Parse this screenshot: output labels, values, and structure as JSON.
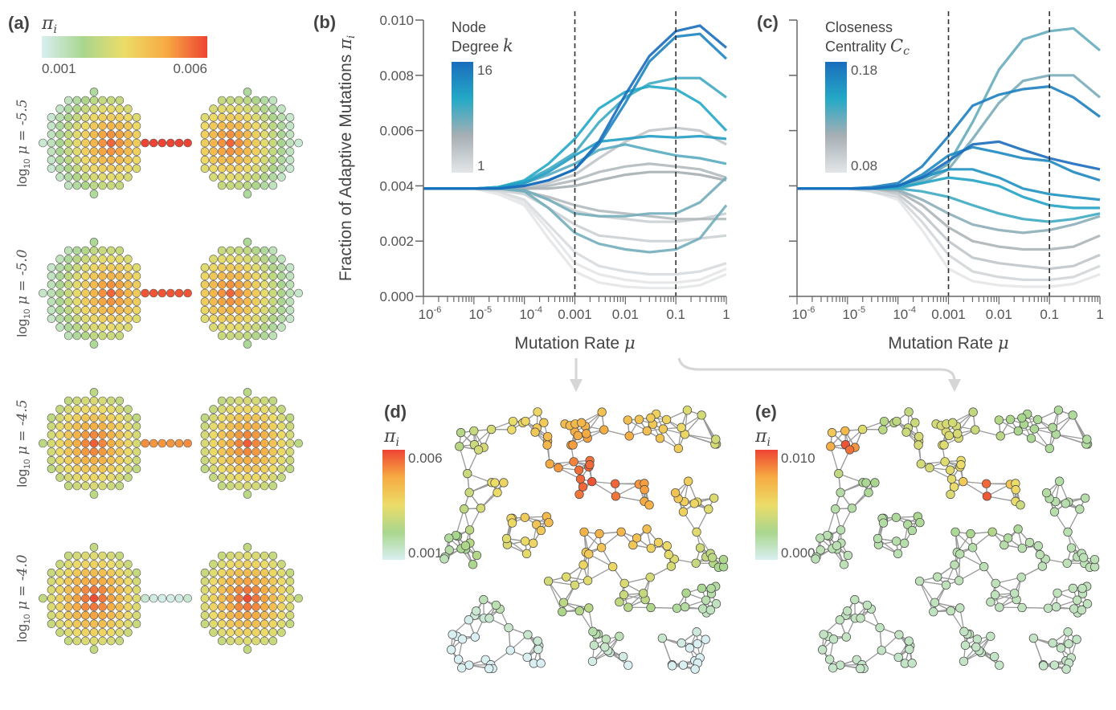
{
  "panel_a": {
    "label": "(a)",
    "colorbar": {
      "symbol": "π",
      "sub": "i",
      "min_label": "0.001",
      "max_label": "0.006",
      "min": 0.001,
      "max": 0.006
    },
    "rows": [
      {
        "prefix": "log",
        "sub": "10",
        "text": " μ = -5.5",
        "blob_center": 0.0056,
        "blob_edge": 0.0014,
        "bridge": [
          0.006,
          0.006,
          0.006,
          0.006,
          0.006,
          0.006
        ]
      },
      {
        "prefix": "log",
        "sub": "10",
        "text": " μ = -5.0",
        "blob_center": 0.0056,
        "blob_edge": 0.0015,
        "bridge": [
          0.0058,
          0.0058,
          0.0058,
          0.0058,
          0.0058,
          0.0058
        ]
      },
      {
        "prefix": "log",
        "sub": "10",
        "text": " μ = -4.5",
        "blob_center": 0.0057,
        "blob_edge": 0.0018,
        "bridge": [
          0.0051,
          0.005,
          0.005,
          0.005,
          0.005,
          0.0051
        ]
      },
      {
        "prefix": "log",
        "sub": "10",
        "text": " μ = -4.0",
        "blob_center": 0.0059,
        "blob_edge": 0.0019,
        "bridge": [
          0.0014,
          0.0012,
          0.0011,
          0.0011,
          0.0012,
          0.0014
        ]
      }
    ]
  },
  "palette": {
    "pi": [
      "#d9eff1",
      "#a9d68e",
      "#ecdc68",
      "#f6ab42",
      "#ee4433"
    ],
    "centrality": [
      "#e3e6e8",
      "#a7afb4",
      "#24a9c6",
      "#1a6dbd"
    ],
    "axis": "#666666",
    "edge": "#9a9a9a",
    "arrow": "#d4d4d4"
  },
  "chart_data": [
    {
      "panel": "(b)",
      "type": "line",
      "ylabel": "Fraction of Adaptive Mutations",
      "ylabel_symbol": "π",
      "ylabel_sub": "i",
      "xlabel": "Mutation Rate",
      "xlabel_symbol": "μ",
      "x_scale": "log",
      "xlim": [
        1e-06,
        1
      ],
      "ylim": [
        0,
        0.01
      ],
      "yticks": [
        "0.000",
        "0.002",
        "0.004",
        "0.006",
        "0.008",
        "0.010"
      ],
      "xticks": [
        {
          "base": "10",
          "exp": "-6",
          "v": 1e-06
        },
        {
          "base": "10",
          "exp": "-5",
          "v": 1e-05
        },
        {
          "base": "10",
          "exp": "-4",
          "v": 0.0001
        },
        {
          "base": "0.001",
          "exp": "",
          "v": 0.001
        },
        {
          "base": "0.01",
          "exp": "",
          "v": 0.01
        },
        {
          "base": "0.1",
          "exp": "",
          "v": 0.1
        },
        {
          "base": "1",
          "exp": "",
          "v": 1
        }
      ],
      "vlines": [
        0.001,
        0.1
      ],
      "legend": {
        "line1": "Node",
        "line2": "Degree",
        "symbol": "k",
        "sub": "",
        "max_label": "16",
        "min_label": "1",
        "min": 1,
        "max": 16
      },
      "x": [
        1e-06,
        3e-06,
        1e-05,
        3e-05,
        0.0001,
        0.0003,
        0.001,
        0.003,
        0.01,
        0.03,
        0.1,
        0.3,
        1
      ],
      "series": [
        {
          "c": 1,
          "values": [
            0.0039,
            0.0039,
            0.0039,
            0.0037,
            0.0033,
            0.0021,
            0.0009,
            0.0005,
            0.00035,
            0.0003,
            0.0003,
            0.0004,
            0.0008
          ]
        },
        {
          "c": 1,
          "values": [
            0.0039,
            0.0039,
            0.0039,
            0.0038,
            0.0034,
            0.0024,
            0.0012,
            0.0008,
            0.0006,
            0.0005,
            0.0005,
            0.0006,
            0.001
          ]
        },
        {
          "c": 2,
          "values": [
            0.0039,
            0.0039,
            0.0039,
            0.0038,
            0.0035,
            0.0026,
            0.0016,
            0.0011,
            0.0009,
            0.0008,
            0.0008,
            0.0009,
            0.0012
          ]
        },
        {
          "c": 3,
          "values": [
            0.0039,
            0.0039,
            0.0039,
            0.00385,
            0.0037,
            0.0032,
            0.0026,
            0.0022,
            0.0021,
            0.002,
            0.002,
            0.0021,
            0.0022
          ]
        },
        {
          "c": 3,
          "values": [
            0.0039,
            0.0039,
            0.0039,
            0.0039,
            0.0038,
            0.0035,
            0.0031,
            0.0029,
            0.0028,
            0.0027,
            0.0027,
            0.0028,
            0.003
          ]
        },
        {
          "c": 4,
          "values": [
            0.0039,
            0.0039,
            0.0039,
            0.0039,
            0.0039,
            0.0041,
            0.0044,
            0.005,
            0.0056,
            0.006,
            0.0061,
            0.006,
            0.0055
          ]
        },
        {
          "c": 5,
          "values": [
            0.0039,
            0.0039,
            0.0039,
            0.0039,
            0.0038,
            0.0036,
            0.0033,
            0.0031,
            0.003,
            0.0029,
            0.0028,
            0.0028,
            0.0028
          ]
        },
        {
          "c": 5,
          "values": [
            0.0039,
            0.0039,
            0.0039,
            0.0039,
            0.0039,
            0.004,
            0.0042,
            0.0045,
            0.0047,
            0.0048,
            0.0047,
            0.0046,
            0.0043
          ]
        },
        {
          "c": 6,
          "values": [
            0.0039,
            0.0039,
            0.0039,
            0.0039,
            0.0039,
            0.0039,
            0.004,
            0.0042,
            0.0044,
            0.0045,
            0.0045,
            0.0044,
            0.0042
          ]
        },
        {
          "c": 8,
          "values": [
            0.0039,
            0.0039,
            0.0039,
            0.0039,
            0.0038,
            0.0032,
            0.0023,
            0.0019,
            0.0017,
            0.0016,
            0.0017,
            0.0021,
            0.0033
          ]
        },
        {
          "c": 8,
          "values": [
            0.0039,
            0.0039,
            0.0039,
            0.0039,
            0.00385,
            0.0035,
            0.003,
            0.0029,
            0.0029,
            0.003,
            0.003,
            0.0034,
            0.0043
          ]
        },
        {
          "c": 9,
          "values": [
            0.0039,
            0.0039,
            0.0039,
            0.00395,
            0.0041,
            0.0044,
            0.0048,
            0.0053,
            0.0055,
            0.0053,
            0.0051,
            0.005,
            0.0048
          ]
        },
        {
          "c": 10,
          "values": [
            0.0039,
            0.0039,
            0.0039,
            0.00395,
            0.00415,
            0.0046,
            0.0052,
            0.0063,
            0.0072,
            0.0077,
            0.0079,
            0.0079,
            0.0072
          ]
        },
        {
          "c": 11,
          "values": [
            0.0039,
            0.0039,
            0.0039,
            0.00395,
            0.0042,
            0.0048,
            0.0057,
            0.0068,
            0.0074,
            0.0076,
            0.0075,
            0.007,
            0.006
          ]
        },
        {
          "c": 12,
          "values": [
            0.0039,
            0.0039,
            0.0039,
            0.00395,
            0.0041,
            0.0045,
            0.0051,
            0.0056,
            0.0057,
            0.0058,
            0.00575,
            0.0058,
            0.0057
          ]
        },
        {
          "c": 14,
          "values": [
            0.0039,
            0.0039,
            0.0039,
            0.0039,
            0.004,
            0.0042,
            0.0046,
            0.0055,
            0.007,
            0.0085,
            0.0094,
            0.0095,
            0.0086
          ]
        },
        {
          "c": 16,
          "values": [
            0.0039,
            0.0039,
            0.0039,
            0.0039,
            0.004,
            0.0042,
            0.0046,
            0.0056,
            0.0073,
            0.0087,
            0.0096,
            0.0098,
            0.009
          ]
        }
      ]
    },
    {
      "panel": "(c)",
      "type": "line",
      "xlabel": "Mutation Rate",
      "xlabel_symbol": "μ",
      "x_scale": "log",
      "xlim": [
        1e-06,
        1
      ],
      "ylim": [
        0,
        0.01
      ],
      "yticks": [
        "",
        "",
        "",
        "",
        "",
        ""
      ],
      "xticks": [
        {
          "base": "10",
          "exp": "-6",
          "v": 1e-06
        },
        {
          "base": "10",
          "exp": "-5",
          "v": 1e-05
        },
        {
          "base": "10",
          "exp": "-4",
          "v": 0.0001
        },
        {
          "base": "0.001",
          "exp": "",
          "v": 0.001
        },
        {
          "base": "0.01",
          "exp": "",
          "v": 0.01
        },
        {
          "base": "0.1",
          "exp": "",
          "v": 0.1
        },
        {
          "base": "1",
          "exp": "",
          "v": 1
        }
      ],
      "vlines": [
        0.001,
        0.1
      ],
      "legend": {
        "line1": "Closeness",
        "line2": "Centrality",
        "symbol": "C",
        "sub": "c",
        "max_label": "0.18",
        "min_label": "0.08",
        "min": 0.08,
        "max": 0.18
      },
      "x": [
        1e-06,
        3e-06,
        1e-05,
        3e-05,
        0.0001,
        0.0003,
        0.001,
        0.003,
        0.01,
        0.03,
        0.1,
        0.3,
        1
      ],
      "series": [
        {
          "c": 0.08,
          "values": [
            0.0039,
            0.0039,
            0.0039,
            0.0038,
            0.0035,
            0.0024,
            0.001,
            0.00055,
            0.0004,
            0.00035,
            0.00035,
            0.00045,
            0.0008
          ]
        },
        {
          "c": 0.09,
          "values": [
            0.0039,
            0.0039,
            0.0039,
            0.0038,
            0.0036,
            0.0027,
            0.0015,
            0.0009,
            0.0007,
            0.0006,
            0.0006,
            0.0007,
            0.0011
          ]
        },
        {
          "c": 0.1,
          "values": [
            0.0039,
            0.0039,
            0.0039,
            0.0039,
            0.0037,
            0.003,
            0.002,
            0.0014,
            0.0012,
            0.0011,
            0.001,
            0.0011,
            0.0015
          ]
        },
        {
          "c": 0.11,
          "values": [
            0.0039,
            0.0039,
            0.0039,
            0.0039,
            0.0038,
            0.0033,
            0.0025,
            0.002,
            0.0018,
            0.0017,
            0.0017,
            0.0018,
            0.0022
          ]
        },
        {
          "c": 0.12,
          "values": [
            0.0039,
            0.0039,
            0.0039,
            0.0039,
            0.00385,
            0.0035,
            0.003,
            0.0026,
            0.0024,
            0.0023,
            0.0024,
            0.0026,
            0.0029
          ]
        },
        {
          "c": 0.125,
          "values": [
            0.0039,
            0.0039,
            0.0039,
            0.0039,
            0.0039,
            0.0041,
            0.0046,
            0.0057,
            0.007,
            0.0078,
            0.008,
            0.008,
            0.0072
          ]
        },
        {
          "c": 0.13,
          "values": [
            0.0039,
            0.0039,
            0.0039,
            0.0039,
            0.0039,
            0.0042,
            0.0048,
            0.0063,
            0.0082,
            0.0093,
            0.0096,
            0.0097,
            0.0089
          ]
        },
        {
          "c": 0.14,
          "values": [
            0.0039,
            0.0039,
            0.0039,
            0.0039,
            0.0039,
            0.0038,
            0.0036,
            0.0033,
            0.003,
            0.0028,
            0.0027,
            0.0028,
            0.003
          ]
        },
        {
          "c": 0.15,
          "values": [
            0.0039,
            0.0039,
            0.0039,
            0.0039,
            0.00395,
            0.0041,
            0.0043,
            0.0042,
            0.004,
            0.0036,
            0.0033,
            0.0032,
            0.0032
          ]
        },
        {
          "c": 0.16,
          "values": [
            0.0039,
            0.0039,
            0.0039,
            0.0039,
            0.004,
            0.0043,
            0.0046,
            0.0046,
            0.0043,
            0.0039,
            0.0037,
            0.0036,
            0.0035
          ]
        },
        {
          "c": 0.165,
          "values": [
            0.0039,
            0.0039,
            0.0039,
            0.0039,
            0.004,
            0.0044,
            0.0051,
            0.0054,
            0.0052,
            0.005,
            0.0049,
            0.0045,
            0.0042
          ]
        },
        {
          "c": 0.17,
          "values": [
            0.0039,
            0.0039,
            0.0039,
            0.00395,
            0.0041,
            0.0047,
            0.0058,
            0.0069,
            0.0073,
            0.0075,
            0.0076,
            0.0072,
            0.0065
          ]
        },
        {
          "c": 0.18,
          "values": [
            0.0039,
            0.0039,
            0.0039,
            0.0039,
            0.004,
            0.0043,
            0.0049,
            0.0055,
            0.0056,
            0.0053,
            0.005,
            0.0048,
            0.0046
          ]
        }
      ]
    }
  ],
  "panel_d": {
    "label": "(d)",
    "symbol": "π",
    "sub": "i",
    "max_label": "0.006",
    "min_label": "0.001",
    "min": 0.001,
    "max": 0.006
  },
  "panel_e": {
    "label": "(e)",
    "symbol": "π",
    "sub": "i",
    "max_label": "0.010",
    "min_label": "0.000",
    "min": 0.0,
    "max": 0.01
  }
}
